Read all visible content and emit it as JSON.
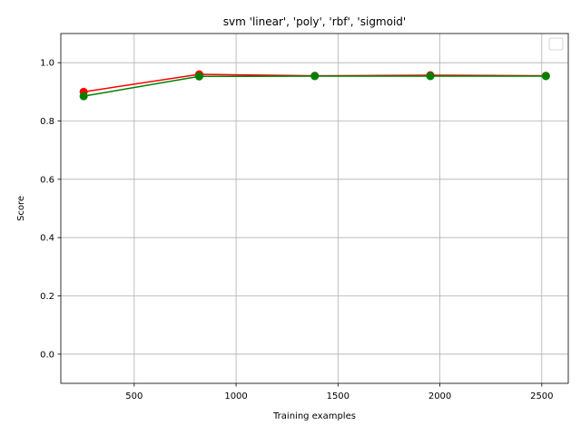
{
  "chart_data": {
    "type": "line",
    "title": "svm 'linear', 'poly', 'rbf', 'sigmoid'",
    "xlabel": "Training examples",
    "ylabel": "Score",
    "xlim": [
      140,
      2630
    ],
    "ylim": [
      -0.1,
      1.1
    ],
    "xticks": [
      500,
      1000,
      1500,
      2000,
      2500
    ],
    "yticks": [
      0.0,
      0.2,
      0.4,
      0.6,
      0.8,
      1.0
    ],
    "xtick_labels": [
      "500",
      "1000",
      "1500",
      "2000",
      "2500"
    ],
    "ytick_labels": [
      "0.0",
      "0.2",
      "0.4",
      "0.6",
      "0.8",
      "1.0"
    ],
    "grid": true,
    "legend": {
      "placement": "top-right",
      "entries": []
    },
    "x": [
      252,
      819,
      1386,
      1953,
      2520
    ],
    "series": [
      {
        "color": "#ff0000",
        "values": [
          0.9,
          0.96,
          0.955,
          0.957,
          0.955
        ]
      },
      {
        "color": "#008000",
        "values": [
          0.885,
          0.953,
          0.954,
          0.954,
          0.954
        ]
      }
    ]
  }
}
